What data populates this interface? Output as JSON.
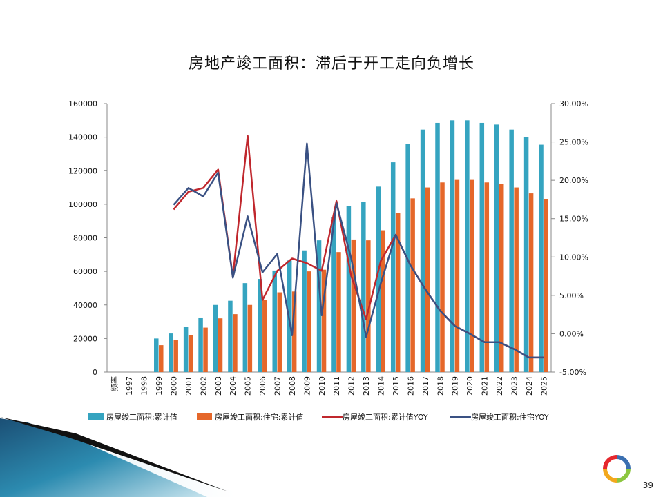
{
  "slide": {
    "title": "房地产竣工面积：滞后于开工走向负增长",
    "page_number": "39"
  },
  "colors": {
    "bar_total": "#35a4c0",
    "bar_residential": "#e5672a",
    "line_total_yoy": "#c0272d",
    "line_residential_yoy": "#3a5183"
  },
  "chart_data": {
    "type": "bar+line",
    "title": "房地产竣工面积：滞后于开工走向负增长",
    "categories": [
      "频率",
      "1997",
      "1998",
      "1999",
      "2000",
      "2001",
      "2002",
      "2003",
      "2004",
      "2005",
      "2006",
      "2007",
      "2008",
      "2009",
      "2010",
      "2011",
      "2012",
      "2013",
      "2014",
      "2015",
      "2016",
      "2017",
      "2018",
      "2019",
      "2020",
      "2021",
      "2022",
      "2023",
      "2024",
      "2025"
    ],
    "y_left": {
      "min": 0,
      "max": 160000,
      "step": 20000,
      "ticks": [
        "0",
        "20000",
        "40000",
        "60000",
        "80000",
        "100000",
        "120000",
        "140000",
        "160000"
      ]
    },
    "y_right": {
      "min": -5,
      "max": 30,
      "step": 5,
      "ticks": [
        "-5.00%",
        "0.00%",
        "5.00%",
        "10.00%",
        "15.00%",
        "20.00%",
        "25.00%",
        "30.00%"
      ]
    },
    "series": [
      {
        "name": "房屋竣工面积:累计值",
        "type": "bar",
        "axis": "left",
        "color": "#35a4c0",
        "values": [
          null,
          null,
          null,
          20000,
          23000,
          27000,
          32500,
          40000,
          42500,
          53000,
          55500,
          60500,
          66500,
          72500,
          78500,
          92500,
          99000,
          101500,
          110500,
          125000,
          136000,
          144500,
          148500,
          150000,
          150000,
          148500,
          147500,
          144500,
          140000,
          135500
        ]
      },
      {
        "name": "房屋竣工面积:住宅:累计值",
        "type": "bar",
        "axis": "left",
        "color": "#e5672a",
        "values": [
          null,
          null,
          null,
          16000,
          19000,
          22000,
          26500,
          32000,
          34500,
          40000,
          43000,
          47500,
          48000,
          60000,
          61000,
          71500,
          79000,
          78500,
          84500,
          95000,
          103500,
          110000,
          113000,
          114500,
          114500,
          113000,
          112000,
          110000,
          106500,
          103000
        ]
      },
      {
        "name": "房屋竣工面积:累计值YOY",
        "type": "line",
        "axis": "right",
        "color": "#c0272d",
        "values": [
          null,
          null,
          null,
          null,
          16.2,
          18.5,
          19.0,
          21.4,
          7.4,
          25.8,
          4.4,
          8.2,
          9.8,
          9.2,
          8.2,
          17.3,
          7.5,
          1.9,
          9.5,
          12.9,
          8.9,
          5.8,
          3.0,
          1.0,
          0.0,
          -1.1,
          -1.1,
          -2.0,
          -3.1,
          -3.1
        ]
      },
      {
        "name": "房屋竣工面积:住宅YOY",
        "type": "line",
        "axis": "right",
        "color": "#3a5183",
        "values": [
          null,
          null,
          null,
          null,
          16.8,
          19.0,
          17.9,
          21.0,
          7.3,
          15.3,
          8.0,
          10.4,
          -0.2,
          24.8,
          2.4,
          17.0,
          9.8,
          -0.4,
          6.6,
          12.9,
          8.9,
          5.8,
          3.0,
          1.0,
          0.0,
          -1.1,
          -1.1,
          -2.0,
          -3.1,
          -3.1
        ]
      }
    ],
    "legend_position": "bottom",
    "grid": false
  }
}
